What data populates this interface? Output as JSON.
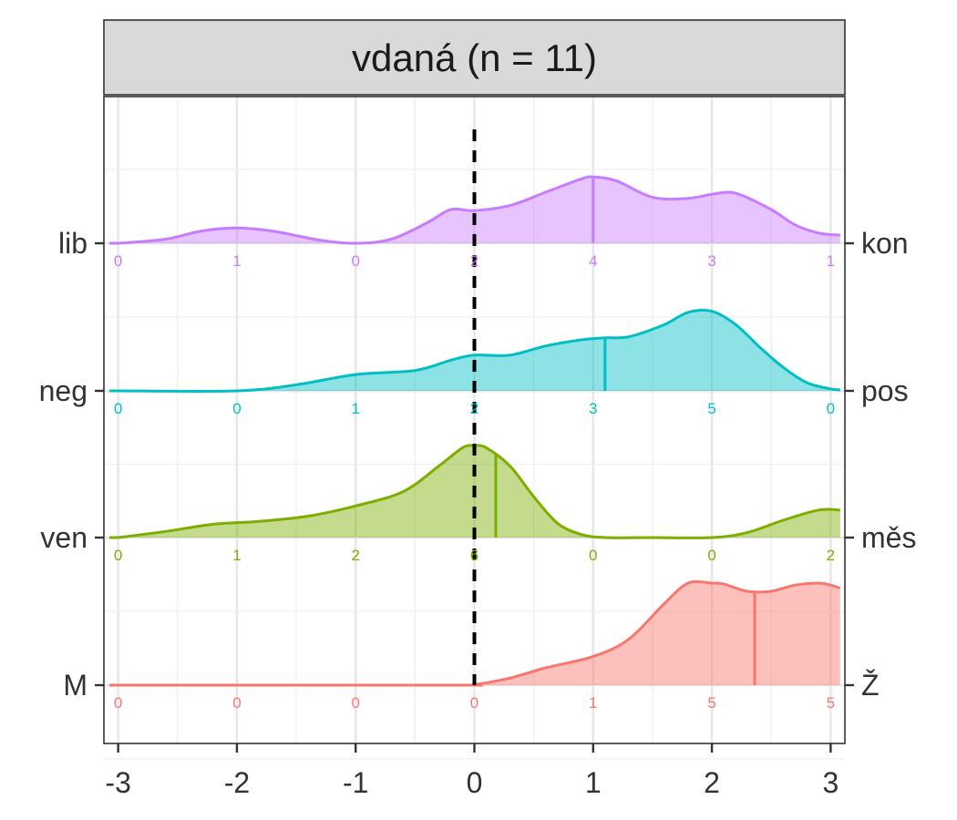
{
  "chart_data": {
    "type": "ridgeline-density",
    "panel_title": "vdaná (n = 11)",
    "x": {
      "ticks": [
        -3,
        -2,
        -1,
        0,
        1,
        2,
        3
      ],
      "tick_labels": [
        "-3",
        "-2",
        "-1",
        "0",
        "1",
        "2",
        "3"
      ],
      "range": [
        -3.12,
        3.12
      ]
    },
    "reference_line_x": 0,
    "grid": true,
    "count_positions": [
      -3,
      -2,
      -1,
      0,
      1,
      2,
      3
    ],
    "series": [
      {
        "left_label": "M",
        "right_label": "Ž",
        "color": "#F8766D",
        "counts": [
          0,
          0,
          0,
          0,
          1,
          5,
          5
        ],
        "mean": 2.36,
        "density_x": [
          -3.0,
          -0.2,
          0.0,
          0.3,
          0.6,
          1.0,
          1.3,
          1.6,
          1.8,
          2.0,
          2.1,
          2.3,
          2.5,
          2.7,
          2.9,
          3.0,
          3.08
        ],
        "density_y": [
          0.0,
          0.0,
          0.005,
          0.07,
          0.17,
          0.28,
          0.45,
          0.8,
          1.0,
          1.0,
          0.99,
          0.92,
          0.92,
          0.98,
          1.0,
          0.98,
          0.95
        ]
      },
      {
        "left_label": "ven",
        "right_label": "měs",
        "color": "#7CAE00",
        "counts": [
          0,
          1,
          2,
          6,
          0,
          0,
          2
        ],
        "mean": 0.18,
        "density_x": [
          -3.0,
          -2.6,
          -2.2,
          -1.8,
          -1.4,
          -1.0,
          -0.6,
          -0.3,
          -0.1,
          0.0,
          0.1,
          0.3,
          0.5,
          0.7,
          0.9,
          1.1,
          1.5,
          2.0,
          2.3,
          2.6,
          2.9,
          3.08
        ],
        "density_y": [
          0.0,
          0.06,
          0.13,
          0.16,
          0.21,
          0.31,
          0.45,
          0.7,
          0.88,
          0.9,
          0.88,
          0.7,
          0.4,
          0.14,
          0.03,
          0.0,
          0.0,
          0.0,
          0.05,
          0.17,
          0.27,
          0.27
        ]
      },
      {
        "left_label": "neg",
        "right_label": "pos",
        "color": "#00BFC4",
        "counts": [
          0,
          0,
          1,
          2,
          3,
          5,
          0
        ],
        "mean": 1.1,
        "density_x": [
          -3.0,
          -2.0,
          -1.5,
          -1.0,
          -0.5,
          -0.2,
          0.0,
          0.3,
          0.6,
          0.9,
          1.1,
          1.3,
          1.6,
          1.8,
          2.0,
          2.2,
          2.4,
          2.6,
          2.8,
          3.0,
          3.08
        ],
        "density_y": [
          0.0,
          0.0,
          0.06,
          0.16,
          0.2,
          0.3,
          0.35,
          0.35,
          0.44,
          0.5,
          0.52,
          0.53,
          0.65,
          0.77,
          0.78,
          0.65,
          0.43,
          0.23,
          0.08,
          0.02,
          0.01
        ]
      },
      {
        "left_label": "lib",
        "right_label": "kon",
        "color": "#C77CFF",
        "counts": [
          0,
          1,
          0,
          2,
          4,
          3,
          1
        ],
        "mean": 1.0,
        "density_x": [
          -3.0,
          -2.6,
          -2.3,
          -2.0,
          -1.7,
          -1.3,
          -1.0,
          -0.7,
          -0.4,
          -0.2,
          0.0,
          0.3,
          0.6,
          0.9,
          1.0,
          1.2,
          1.5,
          1.8,
          2.0,
          2.2,
          2.5,
          2.7,
          2.9,
          3.08
        ],
        "density_y": [
          0.0,
          0.04,
          0.12,
          0.15,
          0.12,
          0.03,
          0.0,
          0.04,
          0.2,
          0.33,
          0.32,
          0.37,
          0.5,
          0.63,
          0.65,
          0.61,
          0.45,
          0.44,
          0.48,
          0.49,
          0.33,
          0.18,
          0.1,
          0.08
        ]
      }
    ]
  }
}
